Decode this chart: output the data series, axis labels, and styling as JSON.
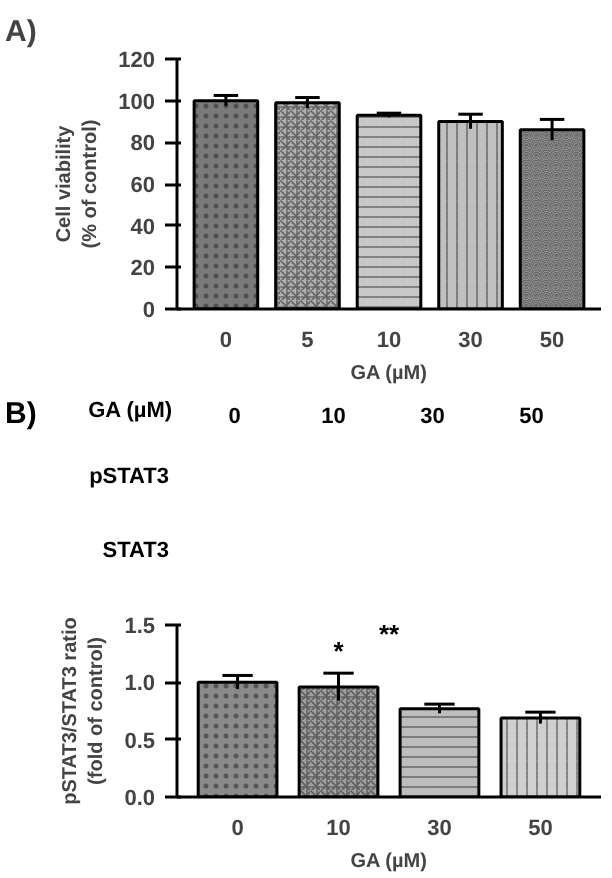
{
  "chart_data": [
    {
      "type": "bar",
      "annotations": [
        "A)"
      ],
      "xlabel": "GA (µM)",
      "ylabel": "Cell viability\n(% of control)",
      "categories": [
        "0",
        "5",
        "10",
        "30",
        "50"
      ],
      "values": [
        100,
        99,
        93,
        90,
        86
      ],
      "errors": [
        2.5,
        2.5,
        1,
        3.5,
        5
      ],
      "colors": [
        "#7a7a7a",
        "#b0b0b0",
        "#c8c8c8",
        "#c0c0c0",
        "#b8b8b8"
      ],
      "ylim": [
        0,
        120
      ],
      "yticks": [
        0,
        20,
        40,
        60,
        80,
        100,
        120
      ],
      "grid": false
    },
    {
      "type": "other",
      "annotations": [
        "B)",
        "GA (µM)",
        "pSTAT3",
        "STAT3"
      ],
      "categories": [
        "0",
        "10",
        "30",
        "50"
      ]
    },
    {
      "type": "bar",
      "xlabel": "GA (µM)",
      "ylabel": "pSTAT3/STAT3 ratio\n(fold of control)",
      "categories": [
        "0",
        "10",
        "30",
        "50"
      ],
      "values": [
        1.0,
        0.96,
        0.77,
        0.69
      ],
      "errors": [
        0.06,
        0.12,
        0.04,
        0.05
      ],
      "colors": [
        "#8a8a8a",
        "#a0a0a0",
        "#bdbdbd",
        "#d0d0d0"
      ],
      "annotations": [
        "*",
        "**"
      ],
      "ylim": [
        0,
        1.5
      ],
      "yticks": [
        {
          "value": 0,
          "label": "0.0"
        },
        {
          "value": 0.5,
          "label": "0.5"
        },
        {
          "value": 1.0,
          "label": "1.0"
        },
        {
          "value": 1.5,
          "label": "1.5"
        }
      ],
      "grid": false
    }
  ]
}
